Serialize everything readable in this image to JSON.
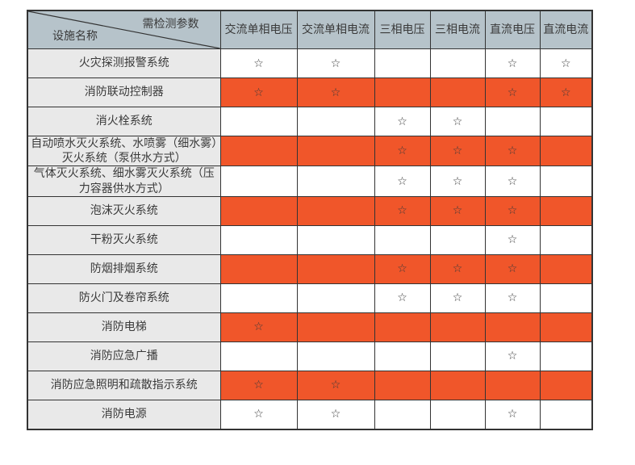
{
  "corner": {
    "param_label": "需检测参数",
    "device_label": "设施名称"
  },
  "columns": [
    "交流单相电压",
    "交流单相电流",
    "三相电压",
    "三相电流",
    "直流电压",
    "直流电流"
  ],
  "star_glyph": "☆",
  "rows": [
    {
      "label": "火灾探测报警系统",
      "highlight": false,
      "stars": [
        1,
        1,
        0,
        0,
        1,
        1
      ]
    },
    {
      "label": "消防联动控制器",
      "highlight": true,
      "stars": [
        1,
        1,
        0,
        0,
        1,
        1
      ]
    },
    {
      "label": "消火栓系统",
      "highlight": false,
      "stars": [
        0,
        0,
        1,
        1,
        0,
        0
      ]
    },
    {
      "label": "自动喷水灭火系统、水喷雾（细水雾）灭火系统（泵供水方式）",
      "highlight": true,
      "stars": [
        0,
        0,
        1,
        1,
        1,
        0
      ]
    },
    {
      "label": "气体灭火系统、细水雾灭火系统（压力容器供水方式）",
      "highlight": false,
      "stars": [
        0,
        0,
        1,
        1,
        1,
        0
      ]
    },
    {
      "label": "泡沫灭火系统",
      "highlight": true,
      "stars": [
        0,
        0,
        1,
        1,
        1,
        0
      ]
    },
    {
      "label": "干粉灭火系统",
      "highlight": false,
      "stars": [
        0,
        0,
        0,
        0,
        1,
        0
      ]
    },
    {
      "label": "防烟排烟系统",
      "highlight": true,
      "stars": [
        0,
        0,
        1,
        1,
        1,
        0
      ]
    },
    {
      "label": "防火门及卷帘系统",
      "highlight": false,
      "stars": [
        0,
        0,
        1,
        1,
        1,
        0
      ]
    },
    {
      "label": "消防电梯",
      "highlight": true,
      "stars": [
        1,
        0,
        0,
        0,
        0,
        0
      ]
    },
    {
      "label": "消防应急广播",
      "highlight": false,
      "stars": [
        0,
        0,
        0,
        0,
        1,
        0
      ]
    },
    {
      "label": "消防应急照明和疏散指示系统",
      "highlight": true,
      "stars": [
        1,
        1,
        0,
        0,
        0,
        0
      ]
    },
    {
      "label": "消防电源",
      "highlight": false,
      "stars": [
        1,
        1,
        0,
        0,
        1,
        0
      ]
    }
  ],
  "colors": {
    "header_bg": "#b6c3ca",
    "label_bg": "#e9e9e9",
    "highlight_bg": "#f0562a",
    "border": "#333333",
    "text": "#3a3a3a",
    "cell_bg": "#ffffff"
  }
}
